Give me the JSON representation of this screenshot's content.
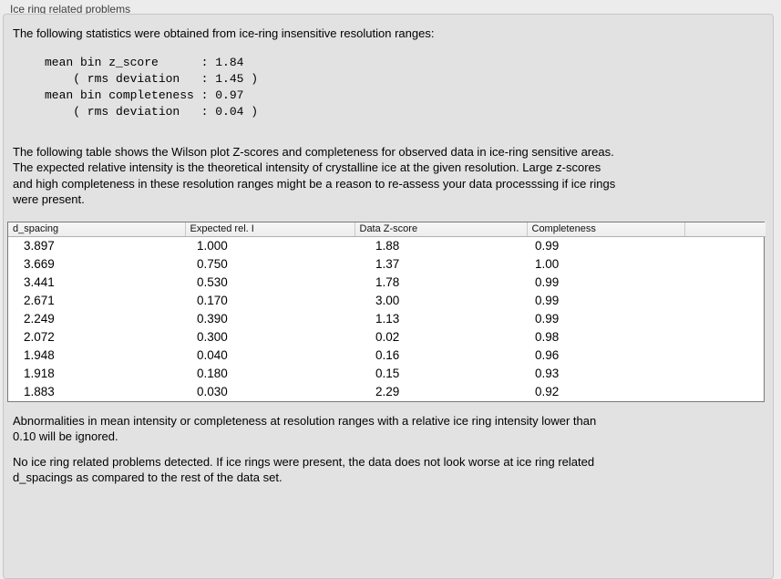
{
  "panel": {
    "title": "Ice ring related problems"
  },
  "intro": "The following statistics were obtained from ice-ring insensitive resolution ranges:",
  "stats_block": "mean bin z_score      : 1.84\n    ( rms deviation   : 1.45 )\nmean bin completeness : 0.97\n    ( rms deviation   : 0.04 )",
  "description": "The following table shows the Wilson plot Z-scores and completeness for observed data in ice-ring sensitive areas.\nThe expected relative intensity is the theoretical intensity of crystalline ice at the given resolution. Large z-scores\nand high completeness in these resolution ranges might be a reason to re-assess your data processsing if ice rings\nwere present.",
  "table": {
    "columns": [
      "d_spacing",
      "Expected rel. I",
      "Data Z-score",
      "Completeness",
      ""
    ],
    "rows": [
      [
        "3.897",
        "1.000",
        "1.88",
        "0.99"
      ],
      [
        "3.669",
        "0.750",
        "1.37",
        "1.00"
      ],
      [
        "3.441",
        "0.530",
        "1.78",
        "0.99"
      ],
      [
        "2.671",
        "0.170",
        "3.00",
        "0.99"
      ],
      [
        "2.249",
        "0.390",
        "1.13",
        "0.99"
      ],
      [
        "2.072",
        "0.300",
        "0.02",
        "0.98"
      ],
      [
        "1.948",
        "0.040",
        "0.16",
        "0.96"
      ],
      [
        "1.918",
        "0.180",
        "0.15",
        "0.93"
      ],
      [
        "1.883",
        "0.030",
        "2.29",
        "0.92"
      ]
    ]
  },
  "note_ignore": "Abnormalities in mean intensity or completeness at resolution ranges with a relative ice ring intensity lower than\n0.10 will be ignored.",
  "conclusion": "No ice ring related problems detected. If ice rings were present, the data does not look worse at ice ring related\nd_spacings as compared to the rest of the data set.",
  "colors": {
    "page_bg": "#ececec",
    "panel_bg": "#e2e2e2",
    "panel_border": "#c6c6c6",
    "table_border": "#7a7a7a",
    "header_bg": "#f6f6f6",
    "header_border": "#b0b0b0",
    "header_sep": "#c9c9c9",
    "text": "#000000",
    "title_color": "#3f3f3f"
  }
}
